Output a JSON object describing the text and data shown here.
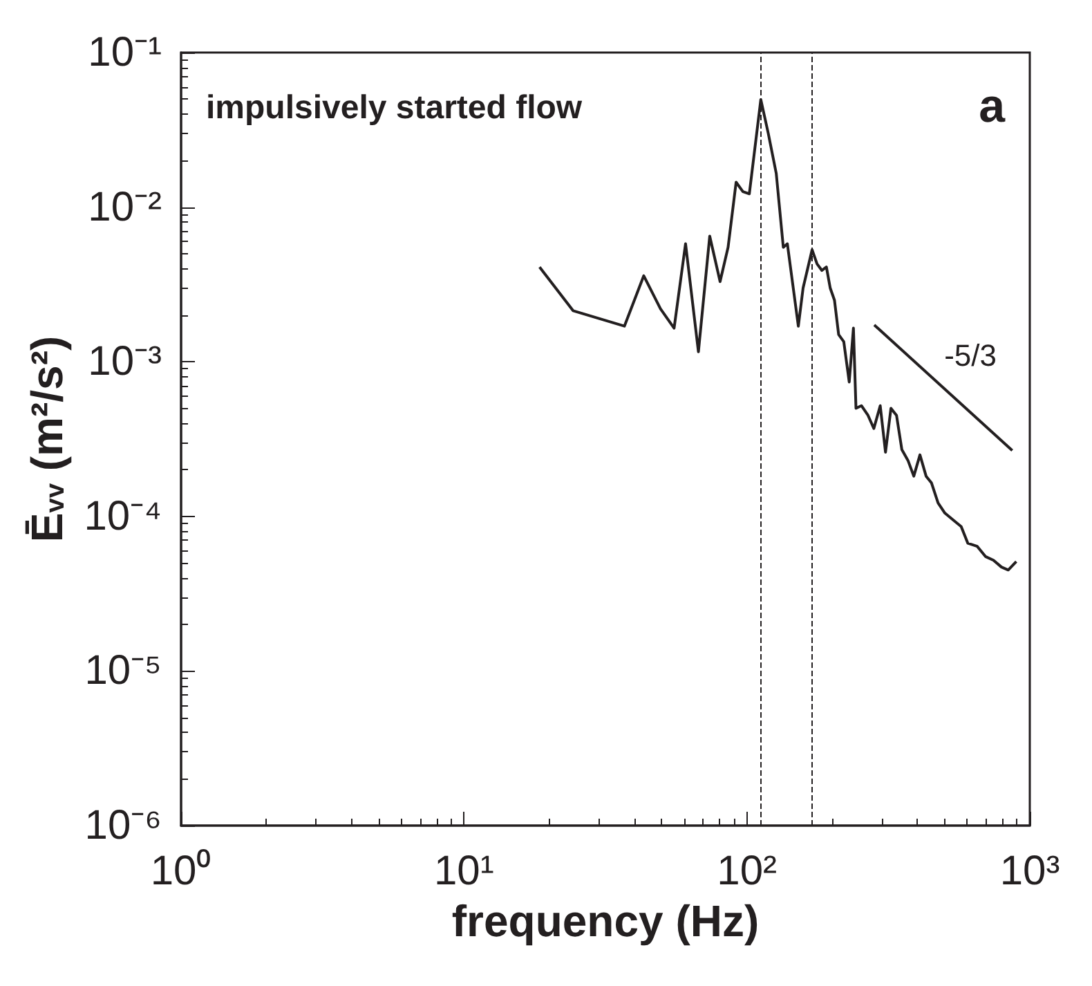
{
  "chart_data": {
    "type": "line",
    "xlabel": "frequency (Hz)",
    "ylabel": "Ē$_{vv}$ (m²/s²)",
    "annotations": [
      "impulsively started flow",
      "a",
      "-5/3"
    ],
    "log": "xy",
    "grid": false,
    "marker": "none",
    "line_style": "solid",
    "xlim": [
      1,
      1000
    ],
    "xticks": [
      {
        "value": 1,
        "label": "10⁰"
      },
      {
        "value": 10,
        "label": "10¹"
      },
      {
        "value": 100,
        "label": "10²"
      },
      {
        "value": 1000,
        "label": "10³"
      }
    ],
    "ylim": [
      1e-06,
      0.1
    ],
    "yticks": [
      {
        "value": 1e-06,
        "label": "10⁻⁶"
      },
      {
        "value": 1e-05,
        "label": "10⁻⁵"
      },
      {
        "value": 0.0001,
        "label": "10⁻⁴"
      },
      {
        "value": 0.001,
        "label": "10⁻³"
      },
      {
        "value": 0.01,
        "label": "10⁻²"
      },
      {
        "value": 0.1,
        "label": "10⁻¹"
      }
    ],
    "ref_lines": [
      {
        "axis": "x",
        "value": 112,
        "color": "#231f20",
        "line_style": "dashed"
      },
      {
        "axis": "x",
        "value": 170,
        "color": "#231f20",
        "line_style": "dashed"
      }
    ],
    "series": [
      {
        "color": "#231f20",
        "x": [
          18.5,
          24.3,
          36.9,
          43.2,
          49.5,
          55.3,
          60.7,
          67.4,
          73.9,
          80.4,
          85.8,
          91.6,
          96.8,
          102,
          112,
          119,
          127,
          134.5,
          139,
          152,
          158,
          170,
          177,
          184,
          191,
          197,
          204,
          211,
          220,
          230,
          238,
          243,
          254,
          268,
          281,
          296,
          309,
          323,
          338,
          353,
          371,
          389,
          409,
          430,
          449,
          474,
          501,
          535,
          572,
          604,
          652,
          697,
          744,
          794,
          839,
          896
        ],
        "values": [
          0.0041,
          0.00214,
          0.0017,
          0.0036,
          0.0022,
          0.00165,
          0.0058,
          0.00116,
          0.0065,
          0.0033,
          0.0055,
          0.0145,
          0.0126,
          0.0122,
          0.0497,
          0.03,
          0.0165,
          0.0055,
          0.0058,
          0.0017,
          0.003,
          0.0053,
          0.0043,
          0.0039,
          0.0041,
          0.003,
          0.0025,
          0.0015,
          0.00135,
          0.00074,
          0.00165,
          0.0005,
          0.00052,
          0.00045,
          0.00037,
          0.00052,
          0.00026,
          0.0005,
          0.00045,
          0.00027,
          0.00023,
          0.000182,
          0.00025,
          0.000182,
          0.000165,
          0.000122,
          0.000105,
          9.5e-05,
          8.6e-05,
          6.7e-05,
          6.4e-05,
          5.5e-05,
          5.2e-05,
          4.7e-05,
          4.5e-05,
          5.1e-05
        ]
      },
      {
        "type": "line",
        "color": "#231f20",
        "x": [
          282,
          867
        ],
        "values": [
          0.00173,
          0.000267
        ]
      }
    ]
  }
}
